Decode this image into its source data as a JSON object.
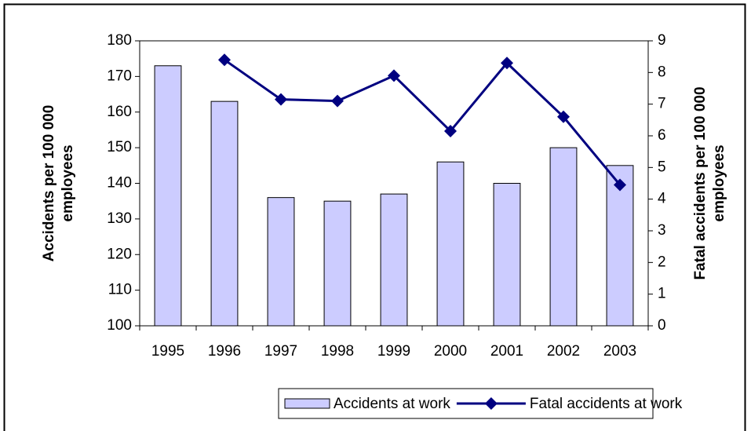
{
  "chart_data": {
    "type": "combo",
    "categories": [
      "1995",
      "1996",
      "1997",
      "1998",
      "1999",
      "2000",
      "2001",
      "2002",
      "2003"
    ],
    "y_label": [
      "Accidents per 100 000",
      "employees"
    ],
    "y2_label": [
      "Fatal accidents per 100 000",
      "employees"
    ],
    "ylim": [
      100,
      180
    ],
    "yticks": [
      100,
      110,
      120,
      130,
      140,
      150,
      160,
      170,
      180
    ],
    "y2lim": [
      0,
      9
    ],
    "y2ticks": [
      0,
      1,
      2,
      3,
      4,
      5,
      6,
      7,
      8,
      9
    ],
    "series": [
      {
        "name": "Accidents at work",
        "type": "bar",
        "color": "#ccccff",
        "values": [
          173,
          163,
          136,
          135,
          137,
          146,
          140,
          150,
          145
        ]
      },
      {
        "name": "Fatal accidents at work",
        "type": "line",
        "color": "#000080",
        "axis": "y2",
        "values": [
          null,
          8.4,
          7.15,
          7.1,
          7.9,
          6.15,
          8.3,
          6.6,
          4.45
        ]
      }
    ],
    "legend": "bottom"
  }
}
